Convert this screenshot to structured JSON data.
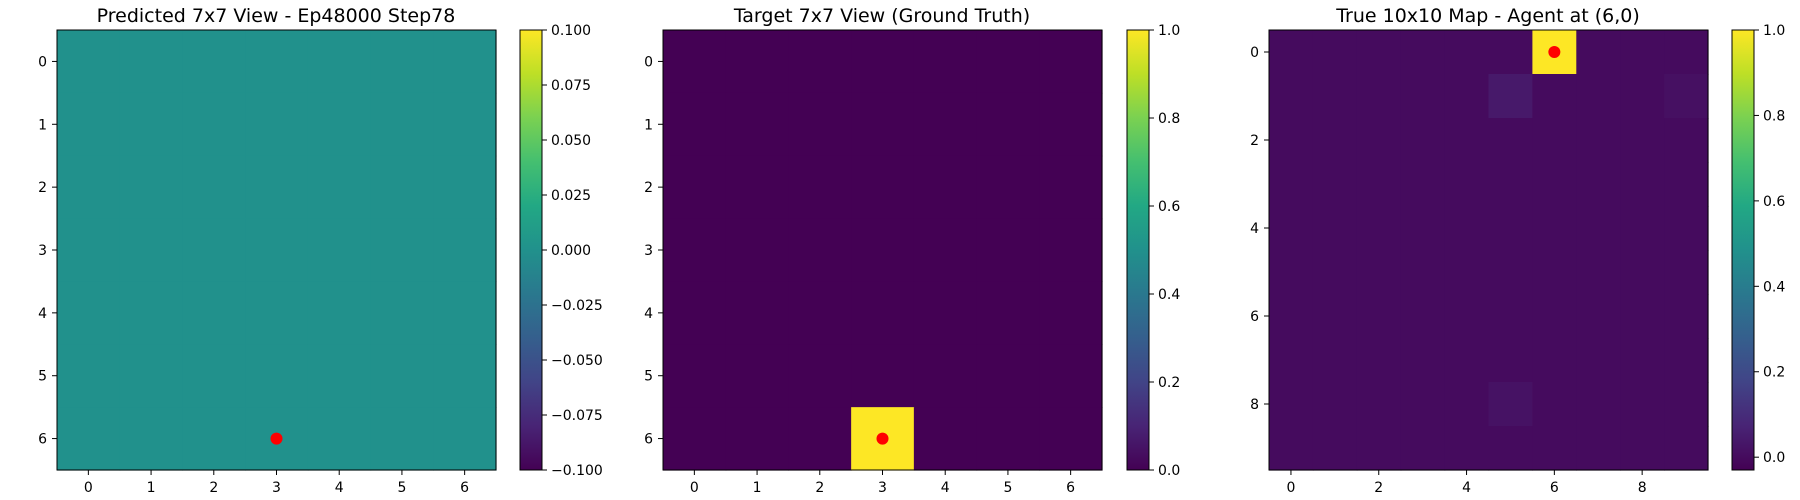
{
  "chart_data": [
    {
      "type": "heatmap",
      "title": "Predicted 7x7 View - Ep48000 Step78",
      "grid_size": 7,
      "values": [
        [
          0,
          0,
          0,
          0,
          0,
          0,
          0
        ],
        [
          0,
          0,
          0,
          0,
          0,
          0,
          0
        ],
        [
          0,
          0,
          0,
          0,
          0,
          0,
          0
        ],
        [
          0,
          0,
          0,
          0,
          0,
          0,
          0
        ],
        [
          0,
          0,
          0,
          0,
          0,
          0,
          0
        ],
        [
          0,
          0,
          0,
          0,
          0,
          0,
          0
        ],
        [
          0,
          0,
          0,
          0,
          0,
          0,
          0
        ]
      ],
      "xticks": [
        0,
        1,
        2,
        3,
        4,
        5,
        6
      ],
      "yticks": [
        0,
        1,
        2,
        3,
        4,
        5,
        6
      ],
      "colorbar": {
        "range": [
          -0.1,
          0.1
        ],
        "ticks": [
          0.1,
          0.075,
          0.05,
          0.025,
          0.0,
          -0.025,
          -0.05,
          -0.075,
          -0.1
        ],
        "tick_labels": [
          "0.100",
          "0.075",
          "0.050",
          "0.025",
          "0.000",
          "−0.025",
          "−0.050",
          "−0.075",
          "−0.100"
        ]
      },
      "colormap": "viridis",
      "marker": {
        "x": 3,
        "y": 6,
        "color": "#ff0000"
      }
    },
    {
      "type": "heatmap",
      "title": "Target 7x7 View (Ground Truth)",
      "grid_size": 7,
      "values": [
        [
          0,
          0,
          0,
          0,
          0,
          0,
          0
        ],
        [
          0,
          0,
          0,
          0,
          0,
          0,
          0
        ],
        [
          0,
          0,
          0,
          0,
          0,
          0,
          0
        ],
        [
          0,
          0,
          0,
          0,
          0,
          0,
          0
        ],
        [
          0,
          0,
          0,
          0,
          0,
          0,
          0
        ],
        [
          0,
          0,
          0,
          0,
          0,
          0,
          0
        ],
        [
          0,
          0,
          0,
          1,
          0,
          0,
          0
        ]
      ],
      "xticks": [
        0,
        1,
        2,
        3,
        4,
        5,
        6
      ],
      "yticks": [
        0,
        1,
        2,
        3,
        4,
        5,
        6
      ],
      "colorbar": {
        "range": [
          0,
          1
        ],
        "ticks": [
          1.0,
          0.8,
          0.6,
          0.4,
          0.2,
          0.0
        ],
        "tick_labels": [
          "1.0",
          "0.8",
          "0.6",
          "0.4",
          "0.2",
          "0.0"
        ]
      },
      "colormap": "viridis",
      "marker": {
        "x": 3,
        "y": 6,
        "color": "#ff0000"
      }
    },
    {
      "type": "heatmap",
      "title": "True 10x10 Map - Agent at (6,0)",
      "grid_size": 10,
      "values": [
        [
          0,
          0,
          0,
          0,
          0,
          0,
          1,
          0,
          0,
          0
        ],
        [
          0,
          0,
          0,
          0,
          0,
          0.04,
          0,
          0,
          0,
          0.015
        ],
        [
          0,
          0,
          0,
          0,
          0,
          0,
          0,
          0,
          0,
          0
        ],
        [
          0,
          0,
          0,
          0,
          0,
          0,
          0,
          0,
          0,
          0
        ],
        [
          0,
          0,
          0,
          0,
          0,
          0,
          0,
          0,
          0,
          0
        ],
        [
          0,
          0,
          0,
          0,
          0,
          0,
          0,
          0,
          0,
          0
        ],
        [
          0,
          0,
          0,
          0,
          0,
          0,
          0,
          0,
          0,
          0
        ],
        [
          0,
          0,
          0,
          0,
          0,
          0,
          0,
          0,
          0,
          0
        ],
        [
          0,
          0,
          0,
          0,
          0,
          0.02,
          0,
          0,
          0,
          0
        ],
        [
          0,
          0,
          0,
          0,
          0,
          0,
          0,
          0,
          0,
          0
        ]
      ],
      "xticks": [
        0,
        2,
        4,
        6,
        8
      ],
      "yticks": [
        0,
        2,
        4,
        6,
        8
      ],
      "colorbar": {
        "range": [
          -0.03,
          1.0
        ],
        "ticks": [
          1.0,
          0.8,
          0.6,
          0.4,
          0.2,
          0.0
        ],
        "tick_labels": [
          "1.0",
          "0.8",
          "0.6",
          "0.4",
          "0.2",
          "0.0"
        ]
      },
      "colormap": "viridis",
      "marker": {
        "x": 6,
        "y": 0,
        "color": "#ff0000"
      }
    }
  ]
}
